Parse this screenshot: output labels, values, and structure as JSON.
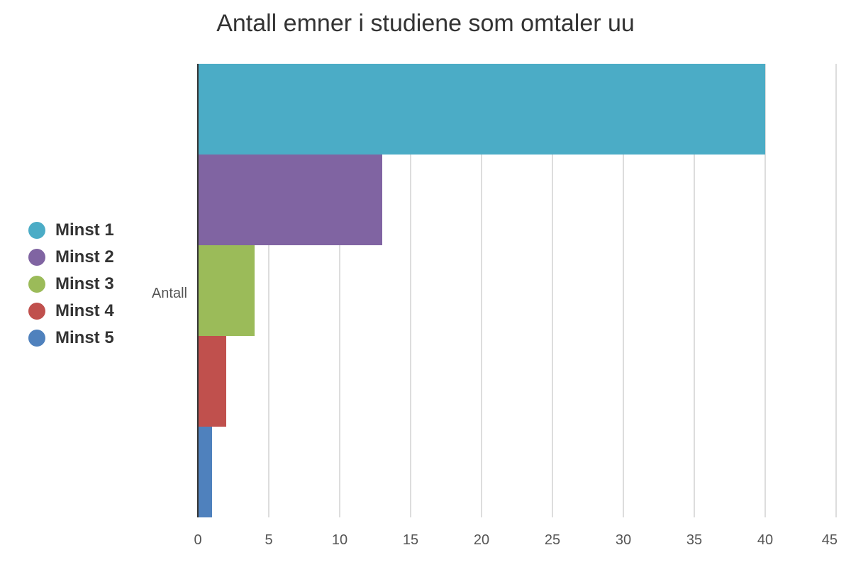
{
  "chart_data": {
    "type": "bar",
    "orientation": "horizontal",
    "title": "Antall emner i studiene som omtaler uu",
    "categories": [
      "Antall"
    ],
    "series": [
      {
        "name": "Minst 1",
        "values": [
          40
        ],
        "color": "#4bacc6"
      },
      {
        "name": "Minst 2",
        "values": [
          13
        ],
        "color": "#8064a2"
      },
      {
        "name": "Minst 3",
        "values": [
          4
        ],
        "color": "#9bbb59"
      },
      {
        "name": "Minst 4",
        "values": [
          2
        ],
        "color": "#c0504d"
      },
      {
        "name": "Minst 5",
        "values": [
          1
        ],
        "color": "#4f81bd"
      }
    ],
    "xlim": [
      0,
      45
    ],
    "xticks": [
      "0",
      "5",
      "10",
      "15",
      "20",
      "25",
      "30",
      "35",
      "40",
      "45"
    ],
    "xlabel": "",
    "ylabel": "",
    "grid": "vertical",
    "legend_position": "left"
  }
}
